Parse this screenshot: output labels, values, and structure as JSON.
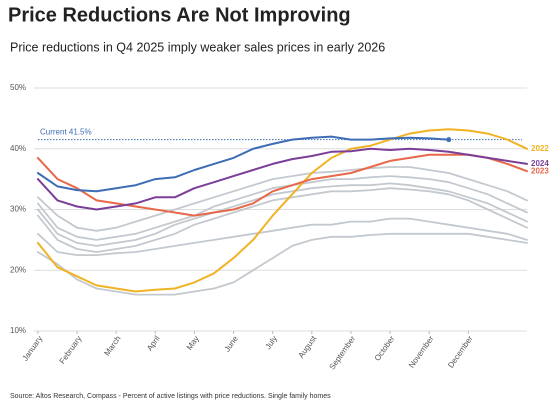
{
  "chart_data": {
    "type": "line",
    "title": "Price Reductions Are Not Improving",
    "subtitle": "Price reductions in Q4 2025 imply weaker sales prices in early 2026",
    "source": "Source: Altos Research, Compass - Percent of active listings with price reductions. Single family homes",
    "annotation": {
      "text": "Current 41.5%",
      "value": 41.5,
      "color": "#3d6db5"
    },
    "x": [
      1,
      1.5,
      2,
      2.5,
      3,
      3.5,
      4,
      4.5,
      5,
      5.5,
      6,
      6.5,
      7,
      7.5,
      8,
      8.5,
      9,
      9.5,
      10,
      10.5,
      11,
      11.5,
      12,
      12.5,
      13,
      13.5
    ],
    "xlim": [
      0.9,
      13.5
    ],
    "xticks": [
      {
        "value": 1,
        "label": "January"
      },
      {
        "value": 2,
        "label": "February"
      },
      {
        "value": 3,
        "label": "March"
      },
      {
        "value": 4,
        "label": "April"
      },
      {
        "value": 5,
        "label": "May"
      },
      {
        "value": 6,
        "label": "June"
      },
      {
        "value": 7,
        "label": "July"
      },
      {
        "value": 8,
        "label": "August"
      },
      {
        "value": 9,
        "label": "September"
      },
      {
        "value": 10,
        "label": "October"
      },
      {
        "value": 11,
        "label": "November"
      },
      {
        "value": 12,
        "label": "December"
      }
    ],
    "ylim": [
      10,
      50
    ],
    "yticks": [
      {
        "value": 10,
        "label": "10%"
      },
      {
        "value": 20,
        "label": "20%"
      },
      {
        "value": 30,
        "label": "30%"
      },
      {
        "value": 40,
        "label": "40%"
      },
      {
        "value": 50,
        "label": "50%"
      }
    ],
    "grid": true,
    "series": [
      {
        "color": "#c3c9cf",
        "values": [
          32,
          29,
          27,
          26.5,
          27,
          28,
          29,
          30,
          31,
          32,
          33,
          34,
          35,
          35.5,
          36,
          36.2,
          36.5,
          36.8,
          37,
          37,
          36.5,
          36,
          35,
          34,
          33,
          31.5
        ]
      },
      {
        "color": "#c3c9cf",
        "values": [
          31,
          27,
          25.5,
          25,
          25.5,
          26,
          27,
          28,
          29,
          30.5,
          31.5,
          32.5,
          33.5,
          34,
          34.5,
          35,
          35,
          35.3,
          35.5,
          35.3,
          35,
          34.5,
          33.5,
          32.5,
          31,
          29.5
        ]
      },
      {
        "color": "#c3c9cf",
        "values": [
          30,
          26,
          24.5,
          24,
          24.5,
          25,
          26,
          27.5,
          28.5,
          29.5,
          30.5,
          31.5,
          32.5,
          33,
          33.5,
          33.8,
          34,
          34,
          34.3,
          34,
          33.5,
          33,
          32,
          31,
          29.5,
          28
        ]
      },
      {
        "color": "#c3c9cf",
        "values": [
          29,
          25,
          23.5,
          23,
          23.5,
          24,
          25,
          26,
          27.5,
          28.5,
          29.5,
          30.5,
          31.5,
          32,
          32.5,
          33,
          33,
          33.2,
          33.5,
          33.3,
          33,
          32.5,
          31.5,
          30,
          28.5,
          27
        ]
      },
      {
        "color": "#c3c9cf",
        "values": [
          26,
          23,
          22.5,
          22.5,
          22.8,
          23,
          23.5,
          24,
          24.5,
          25,
          25.5,
          26,
          26.5,
          27,
          27.5,
          27.5,
          28,
          28,
          28.5,
          28.5,
          28,
          27.5,
          27,
          26.5,
          26,
          25
        ]
      },
      {
        "color": "#c3c9cf",
        "values": [
          23,
          21,
          18.5,
          17,
          16.5,
          16,
          16,
          16,
          16.5,
          17,
          18,
          20,
          22,
          24,
          25,
          25.5,
          25.5,
          25.8,
          26,
          26,
          26,
          26,
          26,
          25.5,
          25,
          24.5
        ]
      },
      {
        "name": "2022",
        "color": "#f0b323",
        "values": [
          24.5,
          20.5,
          19,
          17.5,
          17,
          16.5,
          16.8,
          17,
          18,
          19.5,
          22,
          25,
          29,
          32.5,
          36,
          38.5,
          40,
          40.5,
          41.5,
          42.5,
          43,
          43.2,
          43,
          42.5,
          41.5,
          40
        ]
      },
      {
        "name": "2023",
        "color": "#e8684a",
        "values": [
          38.5,
          35,
          33.5,
          31.5,
          31,
          30.5,
          30,
          29.5,
          29,
          29.5,
          30,
          31,
          33,
          34,
          35,
          35.5,
          36,
          37,
          38,
          38.5,
          39,
          39,
          39,
          38.5,
          37.5,
          36.3
        ]
      },
      {
        "name": "2024",
        "color": "#7b3f98",
        "values": [
          35,
          31.5,
          30.5,
          30,
          30.5,
          31,
          32,
          32,
          33.5,
          34.5,
          35.5,
          36.5,
          37.5,
          38.3,
          38.8,
          39.5,
          39.6,
          40,
          39.8,
          40,
          39.8,
          39.5,
          39,
          38.5,
          38,
          37.5
        ]
      },
      {
        "color": "#3d6db5",
        "values": [
          36,
          33.8,
          33.2,
          33,
          33.5,
          34,
          35,
          35.3,
          36.5,
          37.5,
          38.5,
          40,
          40.8,
          41.5,
          41.8,
          42,
          41.5,
          41.5,
          41.7,
          41.8,
          41.7,
          41.5,
          null,
          null,
          null,
          null
        ]
      }
    ]
  }
}
